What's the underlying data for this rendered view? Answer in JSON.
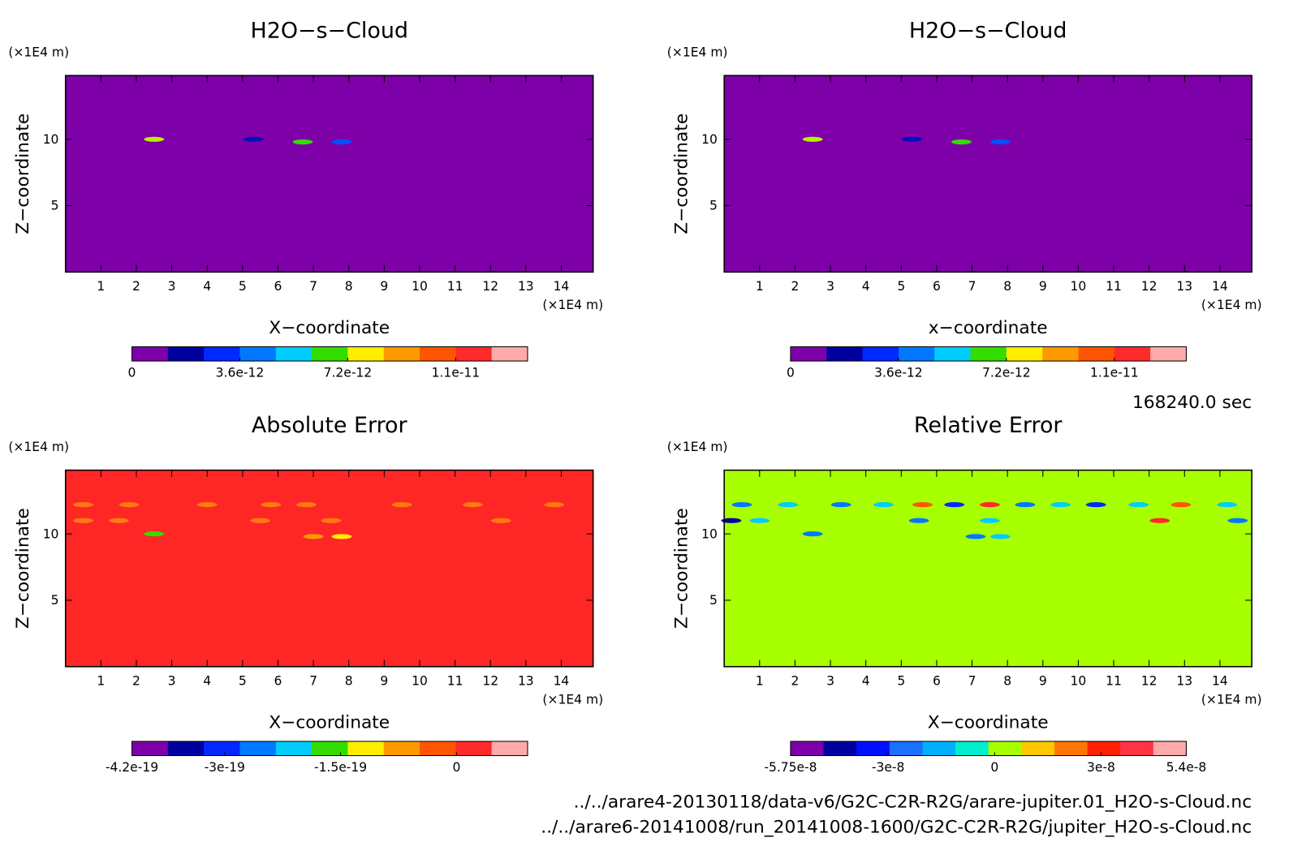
{
  "chart_data": [
    {
      "type": "contour",
      "title": "H2O−s−Cloud",
      "xlabel": "X−coordinate",
      "ylabel": "Z−coordinate",
      "xunit": "(×1E4 m)",
      "yunit": "(×1E4 m)",
      "xlim": [
        0,
        14.9
      ],
      "ylim": [
        0,
        14.8
      ],
      "xticks": [
        1,
        2,
        3,
        4,
        5,
        6,
        7,
        8,
        9,
        10,
        11,
        12,
        13,
        14
      ],
      "yticks": [
        5,
        10
      ],
      "field_color": "#7d00a8",
      "patches": [
        {
          "x": 2.5,
          "z": 10,
          "color": "#b8f000"
        },
        {
          "x": 5.3,
          "z": 10,
          "color": "#0010c0"
        },
        {
          "x": 6.7,
          "z": 9.8,
          "color": "#33dd00"
        },
        {
          "x": 7.8,
          "z": 9.8,
          "color": "#0050ff"
        }
      ],
      "colorbar": {
        "colors": [
          "#7d00a8",
          "#0000a0",
          "#0028ff",
          "#0078ff",
          "#00ccff",
          "#33dd00",
          "#ffee00",
          "#ff9900",
          "#ff5500",
          "#ff2a2a",
          "#ffaaaa"
        ],
        "clim": [
          0,
          1.32e-11
        ],
        "ticks": [
          0,
          3.6e-12,
          7.2e-12,
          {
            "value": 1.08e-11,
            "label": "1.1e-11"
          }
        ]
      }
    },
    {
      "type": "contour",
      "title": "H2O−s−Cloud",
      "xlabel": "x−coordinate",
      "ylabel": "Z−coordinate",
      "xunit": "(×1E4 m)",
      "yunit": "(×1E4 m)",
      "xlim": [
        0,
        14.9
      ],
      "ylim": [
        0,
        14.8
      ],
      "xticks": [
        1,
        2,
        3,
        4,
        5,
        6,
        7,
        8,
        9,
        10,
        11,
        12,
        13,
        14
      ],
      "yticks": [
        5,
        10
      ],
      "field_color": "#7d00a8",
      "patches": [
        {
          "x": 2.5,
          "z": 10,
          "color": "#b8f000"
        },
        {
          "x": 5.3,
          "z": 10,
          "color": "#0010c0"
        },
        {
          "x": 6.7,
          "z": 9.8,
          "color": "#33dd00"
        },
        {
          "x": 7.8,
          "z": 9.8,
          "color": "#0050ff"
        }
      ],
      "colorbar": {
        "colors": [
          "#7d00a8",
          "#0000a0",
          "#0028ff",
          "#0078ff",
          "#00ccff",
          "#33dd00",
          "#ffee00",
          "#ff9900",
          "#ff5500",
          "#ff2a2a",
          "#ffaaaa"
        ],
        "clim": [
          0,
          1.32e-11
        ],
        "ticks": [
          0,
          3.6e-12,
          7.2e-12,
          {
            "value": 1.08e-11,
            "label": "1.1e-11"
          }
        ]
      }
    },
    {
      "type": "contour",
      "title": "Absolute Error",
      "xlabel": "X−coordinate",
      "ylabel": "Z−coordinate",
      "xunit": "(×1E4 m)",
      "yunit": "(×1E4 m)",
      "xlim": [
        0,
        14.9
      ],
      "ylim": [
        0,
        14.8
      ],
      "xticks": [
        1,
        2,
        3,
        4,
        5,
        6,
        7,
        8,
        9,
        10,
        11,
        12,
        13,
        14
      ],
      "yticks": [
        5,
        10
      ],
      "field_color": "#ff2626",
      "patches": [
        {
          "x": 0.5,
          "z": 12.2,
          "color": "#ff7a10"
        },
        {
          "x": 1.8,
          "z": 12.2,
          "color": "#ff7a10"
        },
        {
          "x": 4,
          "z": 12.2,
          "color": "#ff7a10"
        },
        {
          "x": 5.8,
          "z": 12.2,
          "color": "#ff7a10"
        },
        {
          "x": 6.8,
          "z": 12.2,
          "color": "#ff7a10"
        },
        {
          "x": 9.5,
          "z": 12.2,
          "color": "#ff7a10"
        },
        {
          "x": 11.5,
          "z": 12.2,
          "color": "#ff7a10"
        },
        {
          "x": 13.8,
          "z": 12.2,
          "color": "#ff7a10"
        },
        {
          "x": 0.5,
          "z": 11,
          "color": "#ff7a10"
        },
        {
          "x": 1.5,
          "z": 11,
          "color": "#ff7a10"
        },
        {
          "x": 5.5,
          "z": 11,
          "color": "#ff7a10"
        },
        {
          "x": 7.5,
          "z": 11,
          "color": "#ff7a10"
        },
        {
          "x": 12.3,
          "z": 11,
          "color": "#ff7a10"
        },
        {
          "x": 2.5,
          "z": 10,
          "color": "#33dd00"
        },
        {
          "x": 7,
          "z": 9.8,
          "color": "#ff9900"
        },
        {
          "x": 7.8,
          "z": 9.8,
          "color": "#ffee00"
        }
      ],
      "colorbar": {
        "colors": [
          "#7d00a8",
          "#0000a0",
          "#0028ff",
          "#0078ff",
          "#00ccff",
          "#33dd00",
          "#ffee00",
          "#ff9900",
          "#ff5500",
          "#ff2a2a",
          "#ffaaaa"
        ],
        "clim": [
          -4.2e-19,
          9.2e-20
        ],
        "ticks": [
          -4.2e-19,
          -3e-19,
          -1.5e-19,
          0
        ]
      }
    },
    {
      "type": "contour",
      "title": "Relative Error",
      "xlabel": "X−coordinate",
      "ylabel": "Z−coordinate",
      "xunit": "(×1E4 m)",
      "yunit": "(×1E4 m)",
      "xlim": [
        0,
        14.9
      ],
      "ylim": [
        0,
        14.8
      ],
      "xticks": [
        1,
        2,
        3,
        4,
        5,
        6,
        7,
        8,
        9,
        10,
        11,
        12,
        13,
        14
      ],
      "yticks": [
        5,
        10
      ],
      "field_color": "#a8ff00",
      "patches": [
        {
          "x": 0.5,
          "z": 12.2,
          "color": "#0078ff"
        },
        {
          "x": 1.8,
          "z": 12.2,
          "color": "#00ccff"
        },
        {
          "x": 3.3,
          "z": 12.2,
          "color": "#0078ff"
        },
        {
          "x": 4.5,
          "z": 12.2,
          "color": "#00ccff"
        },
        {
          "x": 5.6,
          "z": 12.2,
          "color": "#ff5500"
        },
        {
          "x": 6.5,
          "z": 12.2,
          "color": "#0028ff"
        },
        {
          "x": 7.5,
          "z": 12.2,
          "color": "#ff2a2a"
        },
        {
          "x": 8.5,
          "z": 12.2,
          "color": "#0078ff"
        },
        {
          "x": 9.5,
          "z": 12.2,
          "color": "#00ccff"
        },
        {
          "x": 10.5,
          "z": 12.2,
          "color": "#0028ff"
        },
        {
          "x": 11.7,
          "z": 12.2,
          "color": "#00ccff"
        },
        {
          "x": 12.9,
          "z": 12.2,
          "color": "#ff5500"
        },
        {
          "x": 14.2,
          "z": 12.2,
          "color": "#00ccff"
        },
        {
          "x": 0.2,
          "z": 11,
          "color": "#0000a0"
        },
        {
          "x": 1,
          "z": 11,
          "color": "#00ccff"
        },
        {
          "x": 5.5,
          "z": 11,
          "color": "#0078ff"
        },
        {
          "x": 7.5,
          "z": 11,
          "color": "#00ccff"
        },
        {
          "x": 12.3,
          "z": 11,
          "color": "#ff2a2a"
        },
        {
          "x": 14.5,
          "z": 11,
          "color": "#0078ff"
        },
        {
          "x": 2.5,
          "z": 10,
          "color": "#0078ff"
        },
        {
          "x": 7.1,
          "z": 9.8,
          "color": "#0078ff"
        },
        {
          "x": 7.8,
          "z": 9.8,
          "color": "#00ccff"
        }
      ],
      "colorbar": {
        "colors": [
          "#7d00a8",
          "#0000a0",
          "#0010ff",
          "#1a70ff",
          "#00b0ff",
          "#00eecc",
          "#a8ff00",
          "#ffc800",
          "#ff7700",
          "#ff2200",
          "#ff3344",
          "#ffaaaa"
        ],
        "clim": [
          -5.75e-08,
          5.4e-08
        ],
        "ticks": [
          -5.75e-08,
          -3e-08,
          0,
          3e-08,
          5.4e-08
        ]
      }
    }
  ],
  "time_label": "168240.0 sec",
  "files": [
    "../../arare4-20130118/data-v6/G2C-C2R-R2G/arare-jupiter.01_H2O-s-Cloud.nc",
    "../../arare6-20141008/run_20141008-1600/G2C-C2R-R2G/jupiter_H2O-s-Cloud.nc"
  ]
}
